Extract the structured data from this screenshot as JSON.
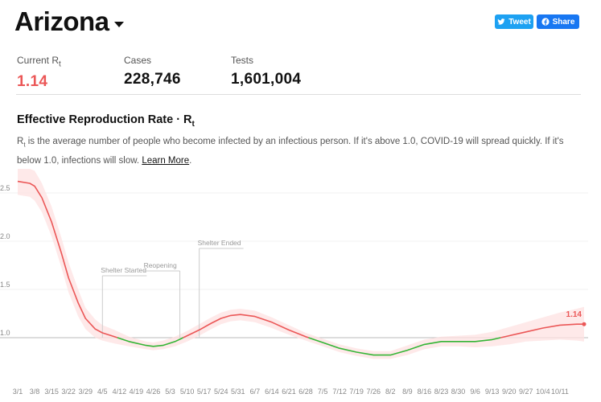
{
  "header": {
    "state_name": "Arizona",
    "tweet_label": "Tweet",
    "share_label": "Share"
  },
  "stats": {
    "rt_label_main": "Current R",
    "rt_label_sub": "t",
    "rt_value": "1.14",
    "cases_label": "Cases",
    "cases_value": "228,746",
    "tests_label": "Tests",
    "tests_value": "1,601,004"
  },
  "section": {
    "title_main": "Effective Reproduction Rate · R",
    "title_sub": "t",
    "desc_prefix": "R",
    "desc_sub": "t",
    "desc_text": " is the average number of people who become infected by an infectious person. If it's above 1.0, COVID-19 will spread quickly. If it's below 1.0, infections will slow. ",
    "learn_more": "Learn More",
    "desc_end": "."
  },
  "colors": {
    "above": "#eb5757",
    "below": "#35b536",
    "band": "#fde2e2"
  },
  "chart_data": {
    "type": "line",
    "title": "Effective Reproduction Rate · Rt",
    "xlabel": "",
    "ylabel": "",
    "ylim": [
      0.75,
      2.75
    ],
    "y_ticks": [
      "1.0",
      "1.5",
      "2.0",
      "2.5"
    ],
    "threshold": 1.0,
    "x_tick_labels": [
      "3/1",
      "3/8",
      "3/15",
      "3/22",
      "3/29",
      "4/5",
      "4/12",
      "4/19",
      "4/26",
      "5/3",
      "5/10",
      "5/17",
      "5/24",
      "5/31",
      "6/7",
      "6/14",
      "6/21",
      "6/28",
      "7/5",
      "7/12",
      "7/19",
      "7/26",
      "8/2",
      "8/9",
      "8/16",
      "8/23",
      "8/30",
      "9/6",
      "9/13",
      "9/20",
      "9/27",
      "10/4",
      "10/11"
    ],
    "series": [
      {
        "name": "Rt",
        "x": [
          0,
          5,
          7,
          10,
          14,
          18,
          21,
          25,
          28,
          32,
          35,
          40,
          46,
          53,
          56,
          60,
          65,
          70,
          75,
          80,
          84,
          88,
          92,
          98,
          105,
          112,
          119,
          126,
          133,
          140,
          147,
          154,
          161,
          168,
          175,
          182,
          189,
          196,
          203,
          210,
          217,
          224,
          231,
          234
        ],
        "values": [
          2.62,
          2.6,
          2.57,
          2.45,
          2.2,
          1.88,
          1.62,
          1.36,
          1.2,
          1.09,
          1.05,
          1.01,
          0.96,
          0.92,
          0.91,
          0.92,
          0.96,
          1.02,
          1.08,
          1.15,
          1.2,
          1.23,
          1.24,
          1.22,
          1.16,
          1.08,
          1.01,
          0.95,
          0.89,
          0.85,
          0.82,
          0.82,
          0.87,
          0.93,
          0.96,
          0.96,
          0.96,
          0.98,
          1.02,
          1.06,
          1.1,
          1.13,
          1.14,
          1.14
        ],
        "upper": [
          2.75,
          2.75,
          2.73,
          2.6,
          2.36,
          2.04,
          1.78,
          1.5,
          1.31,
          1.19,
          1.13,
          1.08,
          1.01,
          0.96,
          0.95,
          0.97,
          1.01,
          1.07,
          1.14,
          1.21,
          1.26,
          1.29,
          1.3,
          1.28,
          1.21,
          1.13,
          1.05,
          0.99,
          0.93,
          0.89,
          0.86,
          0.86,
          0.92,
          0.98,
          1.01,
          1.02,
          1.03,
          1.06,
          1.11,
          1.16,
          1.21,
          1.26,
          1.3,
          1.32
        ],
        "lower": [
          2.48,
          2.46,
          2.42,
          2.3,
          2.05,
          1.73,
          1.47,
          1.22,
          1.09,
          1.0,
          0.97,
          0.94,
          0.91,
          0.88,
          0.87,
          0.88,
          0.91,
          0.96,
          1.02,
          1.09,
          1.14,
          1.17,
          1.18,
          1.16,
          1.1,
          1.03,
          0.97,
          0.91,
          0.85,
          0.81,
          0.78,
          0.78,
          0.82,
          0.88,
          0.91,
          0.91,
          0.9,
          0.91,
          0.93,
          0.96,
          0.97,
          0.98,
          0.97,
          0.96
        ]
      }
    ],
    "annotations": [
      {
        "label": "Shelter Started",
        "day": 35
      },
      {
        "label": "Reopening",
        "day": 67
      },
      {
        "label": "Shelter Ended",
        "day": 75
      }
    ],
    "end_label": "1.14"
  }
}
